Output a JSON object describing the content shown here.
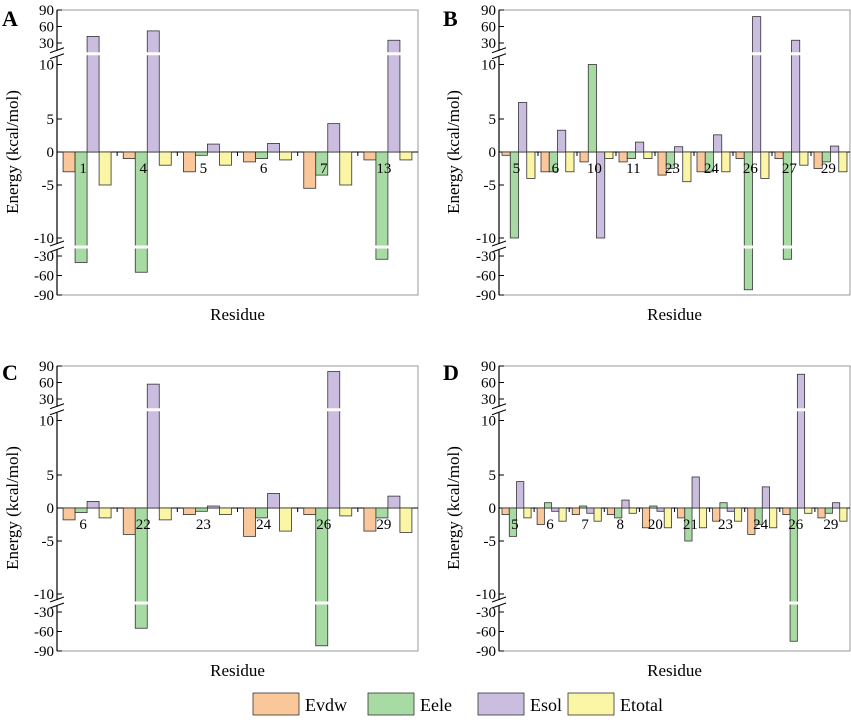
{
  "colors": {
    "Evdw": "#f9c79a",
    "Eele": "#a8dba4",
    "Esol": "#cbbde0",
    "Etotal": "#fbf5a6",
    "axis": "#000000",
    "frame": "#9a9a9a"
  },
  "legend": {
    "items": [
      {
        "key": "Evdw",
        "label": "Evdw"
      },
      {
        "key": "Eele",
        "label": "Eele"
      },
      {
        "key": "Esol",
        "label": "Esol"
      },
      {
        "key": "Etotal",
        "label": "Etotal"
      }
    ]
  },
  "chart_data": [
    {
      "type": "bar",
      "panel_label": "A",
      "xlabel": "Residue",
      "ylabel": "Energy (kcal/mol)",
      "y_ticks": [
        "90",
        "60",
        "30",
        "10",
        "5",
        "0",
        "-5",
        "-10",
        "-30",
        "-60",
        "-90"
      ],
      "series_names": [
        "Evdw",
        "Eele",
        "Esol",
        "Etotal"
      ],
      "categories": [
        "1",
        "4",
        "5",
        "6",
        "7",
        "13"
      ],
      "series": [
        {
          "name": "Evdw",
          "values": [
            -3.0,
            -1.0,
            -3.0,
            -1.5,
            -5.5,
            -1.2
          ]
        },
        {
          "name": "Eele",
          "values": [
            -40,
            -55,
            -0.5,
            -1.0,
            -3.5,
            -35
          ]
        },
        {
          "name": "Esol",
          "values": [
            42,
            52,
            1.2,
            1.3,
            4.3,
            35
          ]
        },
        {
          "name": "Etotal",
          "values": [
            -5.0,
            -2.0,
            -2.0,
            -1.2,
            -5.0,
            -1.2
          ]
        }
      ]
    },
    {
      "type": "bar",
      "panel_label": "B",
      "xlabel": "Residue",
      "ylabel": "Energy (kcal/mol)",
      "y_ticks": [
        "90",
        "60",
        "30",
        "10",
        "5",
        "0",
        "-5",
        "-10",
        "-30",
        "-60",
        "-90"
      ],
      "series_names": [
        "Evdw",
        "Eele",
        "Esol",
        "Etotal"
      ],
      "categories": [
        "5",
        "6",
        "10",
        "11",
        "23",
        "24",
        "26",
        "27",
        "29"
      ],
      "series": [
        {
          "name": "Evdw",
          "values": [
            -0.5,
            -3.0,
            -1.5,
            -1.5,
            -3.5,
            -3.0,
            -1.0,
            -1.0,
            -2.5
          ]
        },
        {
          "name": "Eele",
          "values": [
            -11.0,
            -3.0,
            11.0,
            -1.0,
            -2.5,
            -3.0,
            -82,
            -35,
            -1.5
          ]
        },
        {
          "name": "Esol",
          "values": [
            7.5,
            3.3,
            -10.5,
            1.5,
            0.8,
            2.6,
            78,
            35,
            0.9
          ]
        },
        {
          "name": "Etotal",
          "values": [
            -4.0,
            -3.0,
            -1.0,
            -1.0,
            -4.5,
            -3.0,
            -4.0,
            -2.0,
            -3.0
          ]
        }
      ]
    },
    {
      "type": "bar",
      "panel_label": "C",
      "xlabel": "Residue",
      "ylabel": "Energy (kcal/mol)",
      "y_ticks": [
        "90",
        "60",
        "30",
        "10",
        "5",
        "0",
        "-5",
        "-10",
        "-30",
        "-60",
        "-90"
      ],
      "series_names": [
        "Evdw",
        "Eele",
        "Esol",
        "Etotal"
      ],
      "categories": [
        "6",
        "22",
        "23",
        "24",
        "26",
        "29"
      ],
      "series": [
        {
          "name": "Evdw",
          "values": [
            -1.8,
            -4.0,
            -1.0,
            -4.3,
            -1.0,
            -3.5
          ]
        },
        {
          "name": "Eele",
          "values": [
            -0.7,
            -55,
            -0.5,
            -1.5,
            -82,
            -1.5
          ]
        },
        {
          "name": "Esol",
          "values": [
            1.0,
            57,
            0.3,
            2.2,
            80,
            1.8
          ]
        },
        {
          "name": "Etotal",
          "values": [
            -1.5,
            -1.8,
            -1.0,
            -3.5,
            -1.2,
            -3.7
          ]
        }
      ]
    },
    {
      "type": "bar",
      "panel_label": "D",
      "xlabel": "Residue",
      "ylabel": "Energy (kcal/mol)",
      "y_ticks": [
        "90",
        "60",
        "30",
        "10",
        "5",
        "0",
        "-5",
        "-10",
        "-30",
        "-60",
        "-90"
      ],
      "series_names": [
        "Evdw",
        "Eele",
        "Esol",
        "Etotal"
      ],
      "categories": [
        "5",
        "6",
        "7",
        "8",
        "20",
        "21",
        "23",
        "24",
        "26",
        "29"
      ],
      "series": [
        {
          "name": "Evdw",
          "values": [
            -1.0,
            -2.5,
            -1.0,
            -1.0,
            -3.0,
            -1.5,
            -2.0,
            -4.0,
            -1.0,
            -1.5
          ]
        },
        {
          "name": "Eele",
          "values": [
            -4.3,
            0.8,
            0.3,
            -1.5,
            0.3,
            -5.0,
            0.8,
            -2.5,
            -75,
            -0.8
          ]
        },
        {
          "name": "Esol",
          "values": [
            4.0,
            -0.5,
            -0.8,
            1.2,
            -0.5,
            4.7,
            -0.5,
            3.2,
            75,
            0.8
          ]
        },
        {
          "name": "Etotal",
          "values": [
            -1.5,
            -2.0,
            -2.0,
            -0.8,
            -3.0,
            -3.0,
            -2.0,
            -3.0,
            -0.8,
            -2.0
          ]
        }
      ]
    }
  ]
}
